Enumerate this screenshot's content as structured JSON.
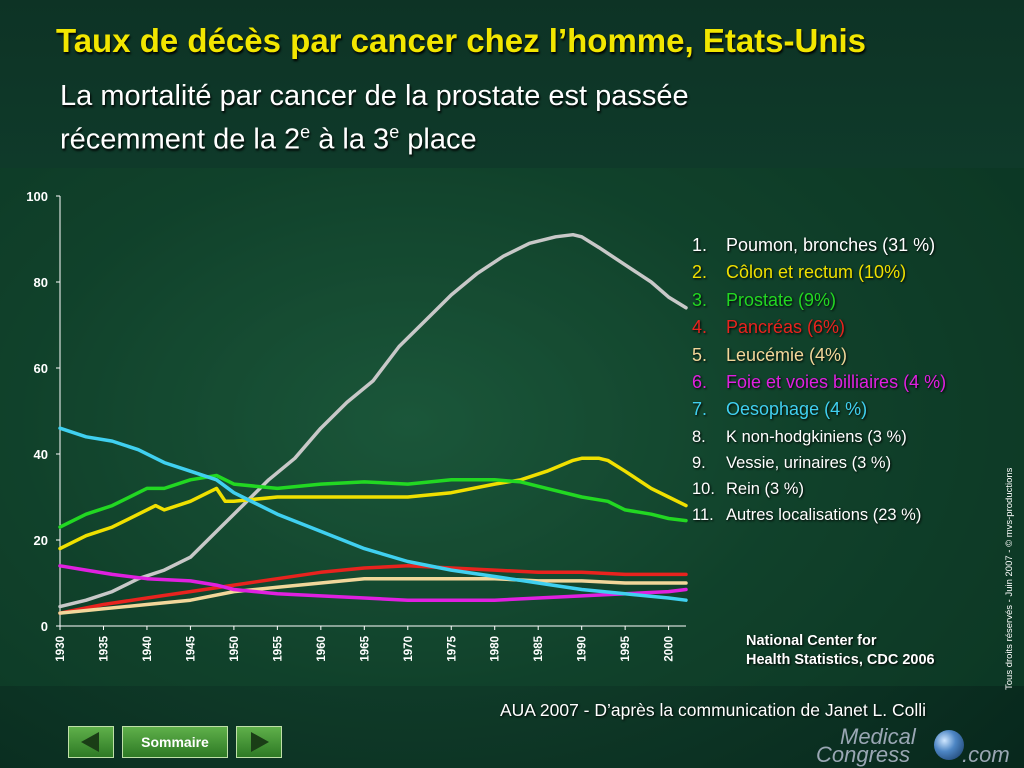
{
  "title": "Taux de décès par cancer chez l’homme, Etats-Unis",
  "subtitle": {
    "line1": "La mortalité par cancer de la prostate est passée",
    "line2_a": "récemment de la 2",
    "sup1": "e",
    "line2_b": " à la 3",
    "sup2": "e",
    "line2_c": " place"
  },
  "legend": [
    {
      "num": "1.",
      "label": "Poumon, bronches (31 %)",
      "color": "#ffffff"
    },
    {
      "num": "2.",
      "label": "Côlon et rectum (10%)",
      "color": "#f0e000"
    },
    {
      "num": "3.",
      "label": "Prostate (9%)",
      "color": "#22d822"
    },
    {
      "num": "4.",
      "label": "Pancréas (6%)",
      "color": "#e8231e"
    },
    {
      "num": "5.",
      "label": "Leucémie (4%)",
      "color": "#f2d79a"
    },
    {
      "num": "6.",
      "label": "Foie et voies billiaires (4 %)",
      "color": "#e020e0"
    },
    {
      "num": "7.",
      "label": "Oesophage (4 %)",
      "color": "#40d0f0"
    },
    {
      "num": "8.",
      "label": "K non-hodgkiniens (3 %)",
      "color": "#ffffff"
    },
    {
      "num": "9.",
      "label": "Vessie, urinaires (3 %)",
      "color": "#ffffff"
    },
    {
      "num": "10.",
      "label": "Rein (3 %)",
      "color": "#ffffff"
    },
    {
      "num": "11.",
      "label": "Autres localisations (23 %)",
      "color": "#ffffff"
    }
  ],
  "source_line1": "National Center for",
  "source_line2": "Health Statistics, CDC 2006",
  "copyright": "Tous droits réservés - Juin 2007 - © mvs-productions",
  "credit": "AUA 2007 - D’après la communication de Janet L. Colli",
  "nav": {
    "home_label": "Sommaire",
    "prev_icon": "arrow-left-icon",
    "next_icon": "arrow-right-icon"
  },
  "logo": {
    "line1": "Medical",
    "line2": "Congress",
    "line3": ".com"
  },
  "chart_data": {
    "type": "line",
    "ylim": [
      0,
      100
    ],
    "xlim": [
      1930,
      2002
    ],
    "yticks": [
      "0",
      "20",
      "40",
      "60",
      "80",
      "100"
    ],
    "xticks": [
      "1930",
      "1935",
      "1940",
      "1945",
      "1950",
      "1955",
      "1960",
      "1965",
      "1970",
      "1975",
      "1980",
      "1985",
      "1990",
      "1995",
      "2000"
    ],
    "grid": false,
    "legend_position": "right",
    "series": [
      {
        "color": "#c8c8c8",
        "x": [
          1930,
          1933,
          1936,
          1939,
          1942,
          1945,
          1948,
          1951,
          1954,
          1957,
          1960,
          1963,
          1966,
          1969,
          1972,
          1975,
          1978,
          1981,
          1984,
          1987,
          1989,
          1990,
          1992,
          1995,
          1998,
          2000,
          2002
        ],
        "y": [
          4.5,
          6,
          8,
          11,
          13,
          16,
          22,
          28,
          34,
          39,
          46,
          52,
          57,
          65,
          71,
          77,
          82,
          86,
          89,
          90.5,
          91,
          90.5,
          88,
          84,
          80,
          76.5,
          74
        ]
      },
      {
        "color": "#f0e000",
        "x": [
          1930,
          1933,
          1936,
          1939,
          1941,
          1942,
          1945,
          1947,
          1948,
          1949,
          1950,
          1955,
          1960,
          1965,
          1970,
          1975,
          1980,
          1983,
          1986,
          1989,
          1990,
          1992,
          1993,
          1995,
          1998,
          2000,
          2002
        ],
        "y": [
          18,
          21,
          23,
          26,
          28,
          27,
          29,
          31,
          32,
          29,
          29,
          30,
          30,
          30,
          30,
          31,
          33,
          34,
          36,
          38.5,
          39,
          39,
          38.5,
          36,
          32,
          30,
          28
        ]
      },
      {
        "color": "#22d822",
        "x": [
          1930,
          1933,
          1936,
          1939,
          1940,
          1942,
          1945,
          1948,
          1950,
          1955,
          1960,
          1965,
          1970,
          1975,
          1980,
          1983,
          1986,
          1990,
          1993,
          1995,
          1998,
          2000,
          2002
        ],
        "y": [
          23,
          26,
          28,
          31,
          32,
          32,
          34,
          35,
          33,
          32,
          33,
          33.5,
          33,
          34,
          34,
          33.5,
          32,
          30,
          29,
          27,
          26,
          25,
          24.5
        ]
      },
      {
        "color": "#e8231e",
        "x": [
          1930,
          1935,
          1940,
          1945,
          1950,
          1955,
          1960,
          1965,
          1970,
          1975,
          1980,
          1985,
          1990,
          1995,
          2000,
          2002
        ],
        "y": [
          3,
          5,
          6.5,
          8,
          9.5,
          11,
          12.5,
          13.5,
          14,
          13.5,
          13,
          12.5,
          12.5,
          12,
          12,
          12
        ]
      },
      {
        "color": "#f2d79a",
        "x": [
          1930,
          1935,
          1940,
          1945,
          1950,
          1955,
          1960,
          1965,
          1970,
          1975,
          1980,
          1985,
          1990,
          1995,
          2000,
          2002
        ],
        "y": [
          3,
          4,
          5,
          6,
          8,
          9,
          10,
          11,
          11,
          11,
          11,
          10.5,
          10.5,
          10,
          10,
          10
        ]
      },
      {
        "color": "#e020e0",
        "x": [
          1930,
          1933,
          1936,
          1940,
          1945,
          1948,
          1950,
          1955,
          1960,
          1965,
          1970,
          1975,
          1980,
          1985,
          1990,
          1995,
          2000,
          2002
        ],
        "y": [
          14,
          13,
          12,
          11,
          10.5,
          9.5,
          8.5,
          7.5,
          7,
          6.5,
          6,
          6,
          6,
          6.5,
          7,
          7.5,
          8,
          8.5
        ]
      },
      {
        "color": "#40d0f0",
        "x": [
          1930,
          1933,
          1936,
          1939,
          1942,
          1945,
          1948,
          1950,
          1955,
          1960,
          1965,
          1970,
          1975,
          1980,
          1985,
          1990,
          1995,
          2000,
          2002
        ],
        "y": [
          46,
          44,
          43,
          41,
          38,
          36,
          34,
          31,
          26,
          22,
          18,
          15,
          13,
          11.5,
          10,
          8.5,
          7.5,
          6.5,
          6
        ]
      }
    ]
  }
}
